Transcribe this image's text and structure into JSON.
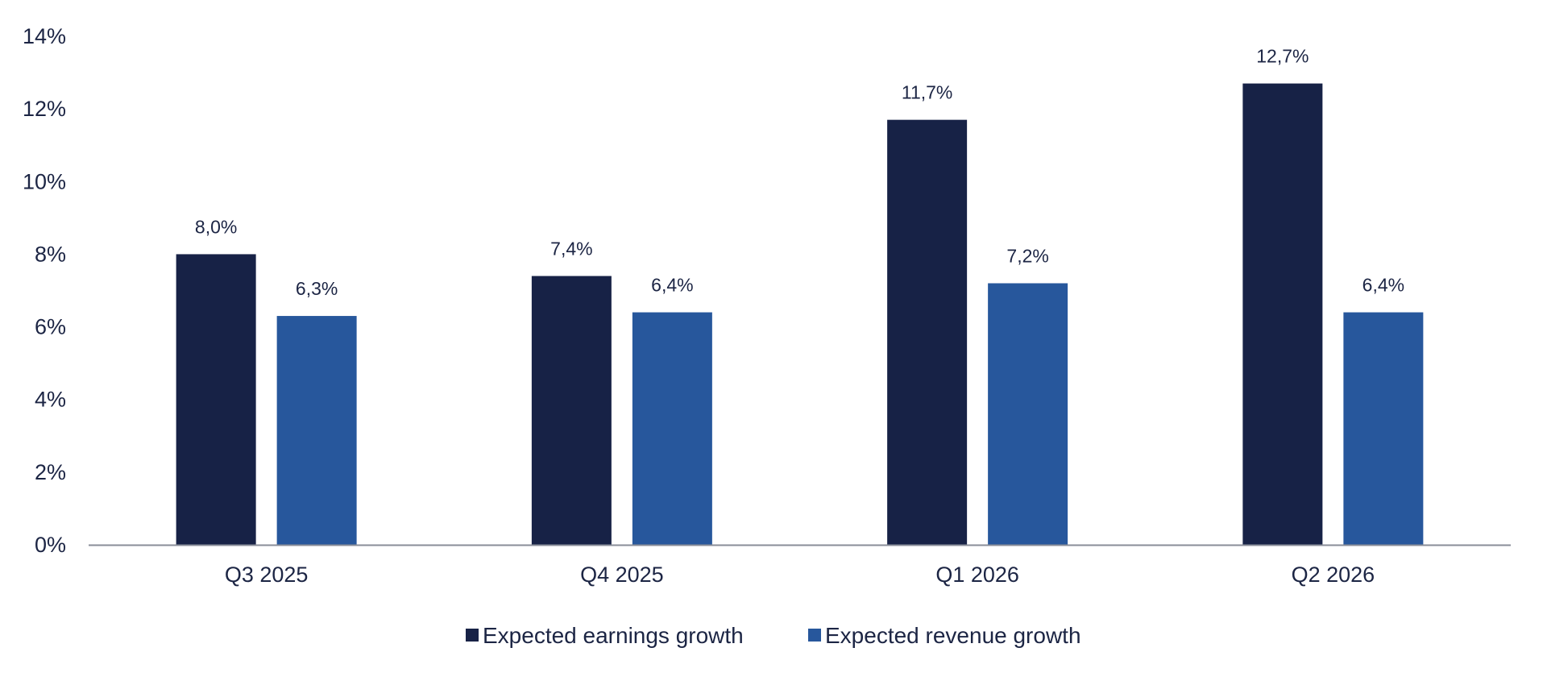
{
  "chart_data": {
    "type": "bar",
    "categories": [
      "Q3 2025",
      "Q4 2025",
      "Q1 2026",
      "Q2 2026"
    ],
    "series": [
      {
        "name": "Expected earnings growth",
        "values": [
          8.0,
          7.4,
          11.7,
          12.7
        ],
        "labels": [
          "8,0%",
          "7,4%",
          "11,7%",
          "12,7%"
        ],
        "color": "#172246"
      },
      {
        "name": "Expected revenue growth",
        "values": [
          6.3,
          6.4,
          7.2,
          6.4
        ],
        "labels": [
          "6,3%",
          "6,4%",
          "7,2%",
          "6,4%"
        ],
        "color": "#27579c"
      }
    ],
    "ylim": [
      0,
      14
    ],
    "yticks": [
      0,
      2,
      4,
      6,
      8,
      10,
      12,
      14
    ],
    "ytick_labels": [
      "0%",
      "2%",
      "4%",
      "6%",
      "8%",
      "10%",
      "12%",
      "14%"
    ],
    "grid": false,
    "legend_position": "bottom-center",
    "axis_color": "#8a8e99",
    "text_color": "#1c2544",
    "title": "",
    "xlabel": "",
    "ylabel": ""
  }
}
